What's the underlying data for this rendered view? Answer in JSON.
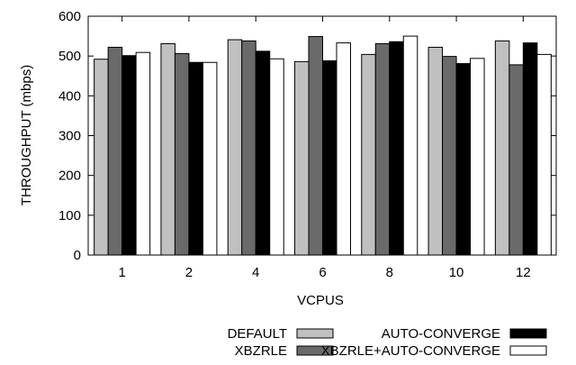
{
  "chart_data": {
    "type": "bar",
    "title": "",
    "xlabel": "VCPUS",
    "ylabel": "THROUGHPUT (mbps)",
    "ylim": [
      0,
      600
    ],
    "yticks": [
      0,
      100,
      200,
      300,
      400,
      500,
      600
    ],
    "grid": false,
    "legend_position": "bottom-right",
    "categories": [
      "1",
      "2",
      "4",
      "6",
      "8",
      "10",
      "12"
    ],
    "series": [
      {
        "name": "DEFAULT",
        "color": "#c0c0c0",
        "values": [
          492,
          531,
          541,
          486,
          504,
          522,
          538
        ]
      },
      {
        "name": "XBZRLE",
        "color": "#6a6a6a",
        "values": [
          522,
          506,
          538,
          549,
          531,
          499,
          478
        ]
      },
      {
        "name": "AUTO-CONVERGE",
        "color": "#000000",
        "values": [
          501,
          484,
          512,
          488,
          536,
          481,
          533
        ]
      },
      {
        "name": "XBZRLE+AUTO-CONVERGE",
        "color": "#ffffff",
        "values": [
          509,
          484,
          493,
          533,
          550,
          494,
          504
        ]
      }
    ]
  }
}
